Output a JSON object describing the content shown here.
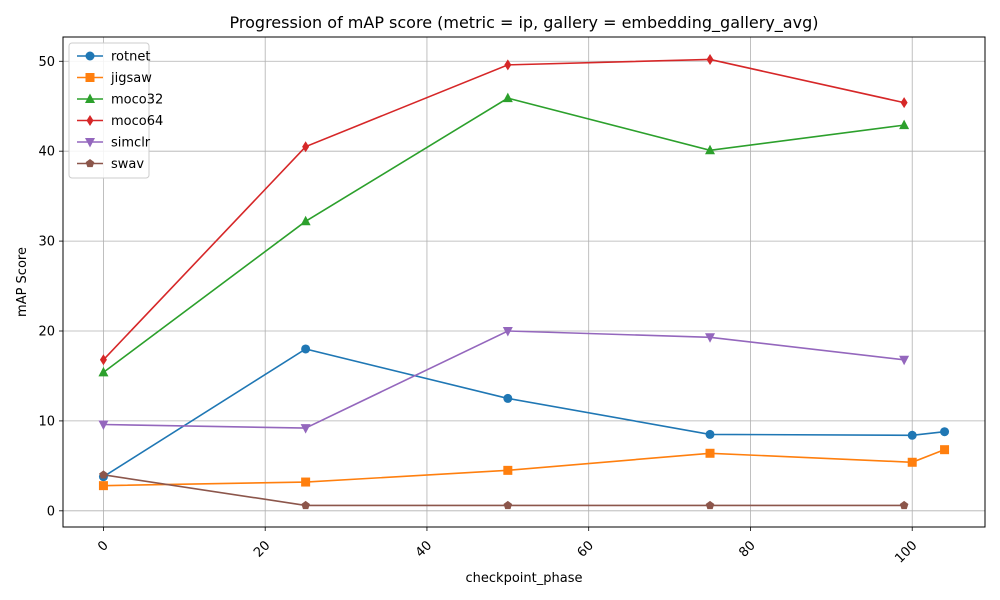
{
  "chart_data": {
    "type": "line",
    "title": "Progression of mAP score (metric = ip, gallery = embedding_gallery_avg)",
    "xlabel": "checkpoint_phase",
    "ylabel": "mAP Score",
    "xlim": [
      -5,
      109
    ],
    "ylim": [
      -1.8,
      52.7
    ],
    "xticks": [
      0,
      20,
      40,
      60,
      80,
      100
    ],
    "yticks": [
      0,
      10,
      20,
      30,
      40,
      50
    ],
    "xtick_rotation": 45,
    "grid": true,
    "legend_position": "top-left",
    "series": [
      {
        "name": "rotnet",
        "color": "#1f77b4",
        "marker": "circle",
        "x": [
          0,
          25,
          50,
          75,
          100,
          104
        ],
        "y": [
          3.8,
          18.0,
          12.5,
          8.5,
          8.4,
          8.8
        ]
      },
      {
        "name": "jigsaw",
        "color": "#ff7f0e",
        "marker": "square",
        "x": [
          0,
          25,
          50,
          75,
          100,
          104
        ],
        "y": [
          2.8,
          3.2,
          4.5,
          6.4,
          5.4,
          6.8
        ]
      },
      {
        "name": "moco32",
        "color": "#2ca02c",
        "marker": "triangle-up",
        "x": [
          0,
          25,
          50,
          75,
          99
        ],
        "y": [
          15.4,
          32.2,
          45.9,
          40.1,
          42.9
        ]
      },
      {
        "name": "moco64",
        "color": "#d62728",
        "marker": "diamond",
        "x": [
          0,
          25,
          50,
          75,
          99
        ],
        "y": [
          16.8,
          40.5,
          49.6,
          50.2,
          45.4
        ]
      },
      {
        "name": "simclr",
        "color": "#9467bd",
        "marker": "triangle-down",
        "x": [
          0,
          25,
          50,
          75,
          99
        ],
        "y": [
          9.6,
          9.2,
          20.0,
          19.3,
          16.8
        ]
      },
      {
        "name": "swav",
        "color": "#8c564b",
        "marker": "pentagon",
        "x": [
          0,
          25,
          50,
          75,
          99
        ],
        "y": [
          4.0,
          0.6,
          0.6,
          0.6,
          0.6
        ]
      }
    ]
  }
}
